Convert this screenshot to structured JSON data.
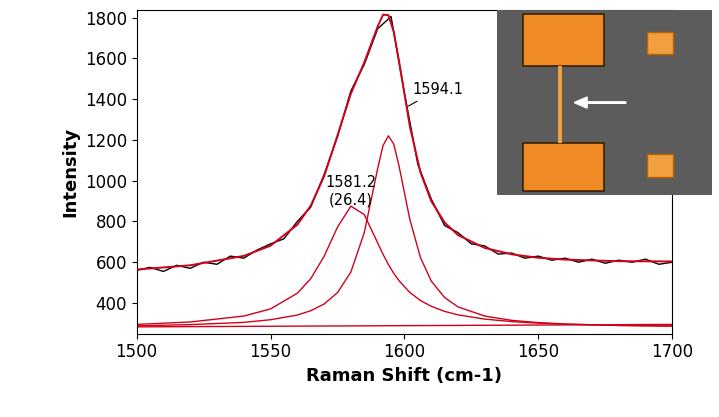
{
  "chart_data": {
    "type": "line",
    "x_label": "Raman Shift (cm-1)",
    "y_label": "Intensity",
    "xlim": [
      1500,
      1700
    ],
    "xticks": [
      1500,
      1550,
      1600,
      1650,
      1700
    ],
    "ylim": [
      250,
      1835
    ],
    "yticks": [
      400,
      600,
      800,
      1000,
      1200,
      1400,
      1600,
      1800
    ],
    "grid": false,
    "annotations": [
      "1581.2\n(26.4)",
      "1594.1"
    ],
    "series": [
      {
        "color": "#000000",
        "x": [
          1500,
          1505,
          1510,
          1515,
          1520,
          1525,
          1530,
          1535,
          1540,
          1545,
          1550,
          1555,
          1560,
          1565,
          1570,
          1575,
          1580,
          1585,
          1590,
          1595,
          1600,
          1605,
          1610,
          1615,
          1620,
          1625,
          1630,
          1635,
          1640,
          1645,
          1650,
          1655,
          1660,
          1665,
          1670,
          1675,
          1680,
          1685,
          1690,
          1695,
          1700
        ],
        "values": [
          560,
          575,
          555,
          585,
          570,
          600,
          590,
          630,
          620,
          660,
          690,
          715,
          800,
          870,
          1030,
          1215,
          1440,
          1570,
          1745,
          1805,
          1430,
          1080,
          910,
          780,
          745,
          690,
          680,
          640,
          645,
          620,
          630,
          610,
          620,
          600,
          615,
          595,
          610,
          600,
          615,
          590,
          600
        ]
      },
      {
        "color": "#d0021b",
        "x": [
          1500,
          1520,
          1540,
          1550,
          1560,
          1565,
          1570,
          1575,
          1580,
          1585,
          1590,
          1592,
          1594,
          1596,
          1598,
          1602,
          1606,
          1610,
          1615,
          1620,
          1630,
          1640,
          1650,
          1660,
          1680,
          1700
        ],
        "values": [
          564,
          585,
          631,
          681,
          784,
          877,
          1021,
          1222,
          1427,
          1580,
          1756,
          1814,
          1812,
          1730,
          1584,
          1268,
          1040,
          900,
          795,
          733,
          670,
          639,
          622,
          613,
          605,
          604
        ]
      },
      {
        "color": "#d0021b",
        "x": [
          1500,
          1520,
          1540,
          1550,
          1560,
          1565,
          1570,
          1575,
          1580,
          1585,
          1590,
          1592,
          1594,
          1596,
          1598,
          1602,
          1606,
          1610,
          1615,
          1620,
          1630,
          1640,
          1650,
          1660,
          1680,
          1700
        ],
        "values": [
          295,
          307,
          336,
          371,
          448,
          519,
          629,
          772,
          875,
          834,
          695,
          639,
          589,
          546,
          509,
          452,
          412,
          384,
          359,
          342,
          321,
          309,
          301,
          296,
          290,
          287
        ]
      },
      {
        "color": "#d0021b",
        "x": [
          1500,
          1520,
          1540,
          1550,
          1560,
          1565,
          1570,
          1575,
          1580,
          1585,
          1590,
          1592,
          1594,
          1596,
          1598,
          1602,
          1606,
          1610,
          1615,
          1620,
          1630,
          1640,
          1650,
          1660,
          1680,
          1700
        ],
        "values": [
          288,
          294,
          305,
          318,
          341,
          362,
          395,
          451,
          552,
          745,
          1059,
          1172,
          1220,
          1180,
          1071,
          811,
          622,
          508,
          427,
          381,
          336,
          315,
          304,
          297,
          290,
          287
        ]
      },
      {
        "color": "#d0021b",
        "x": [
          1500,
          1700
        ],
        "values": [
          283,
          295
        ]
      }
    ]
  }
}
